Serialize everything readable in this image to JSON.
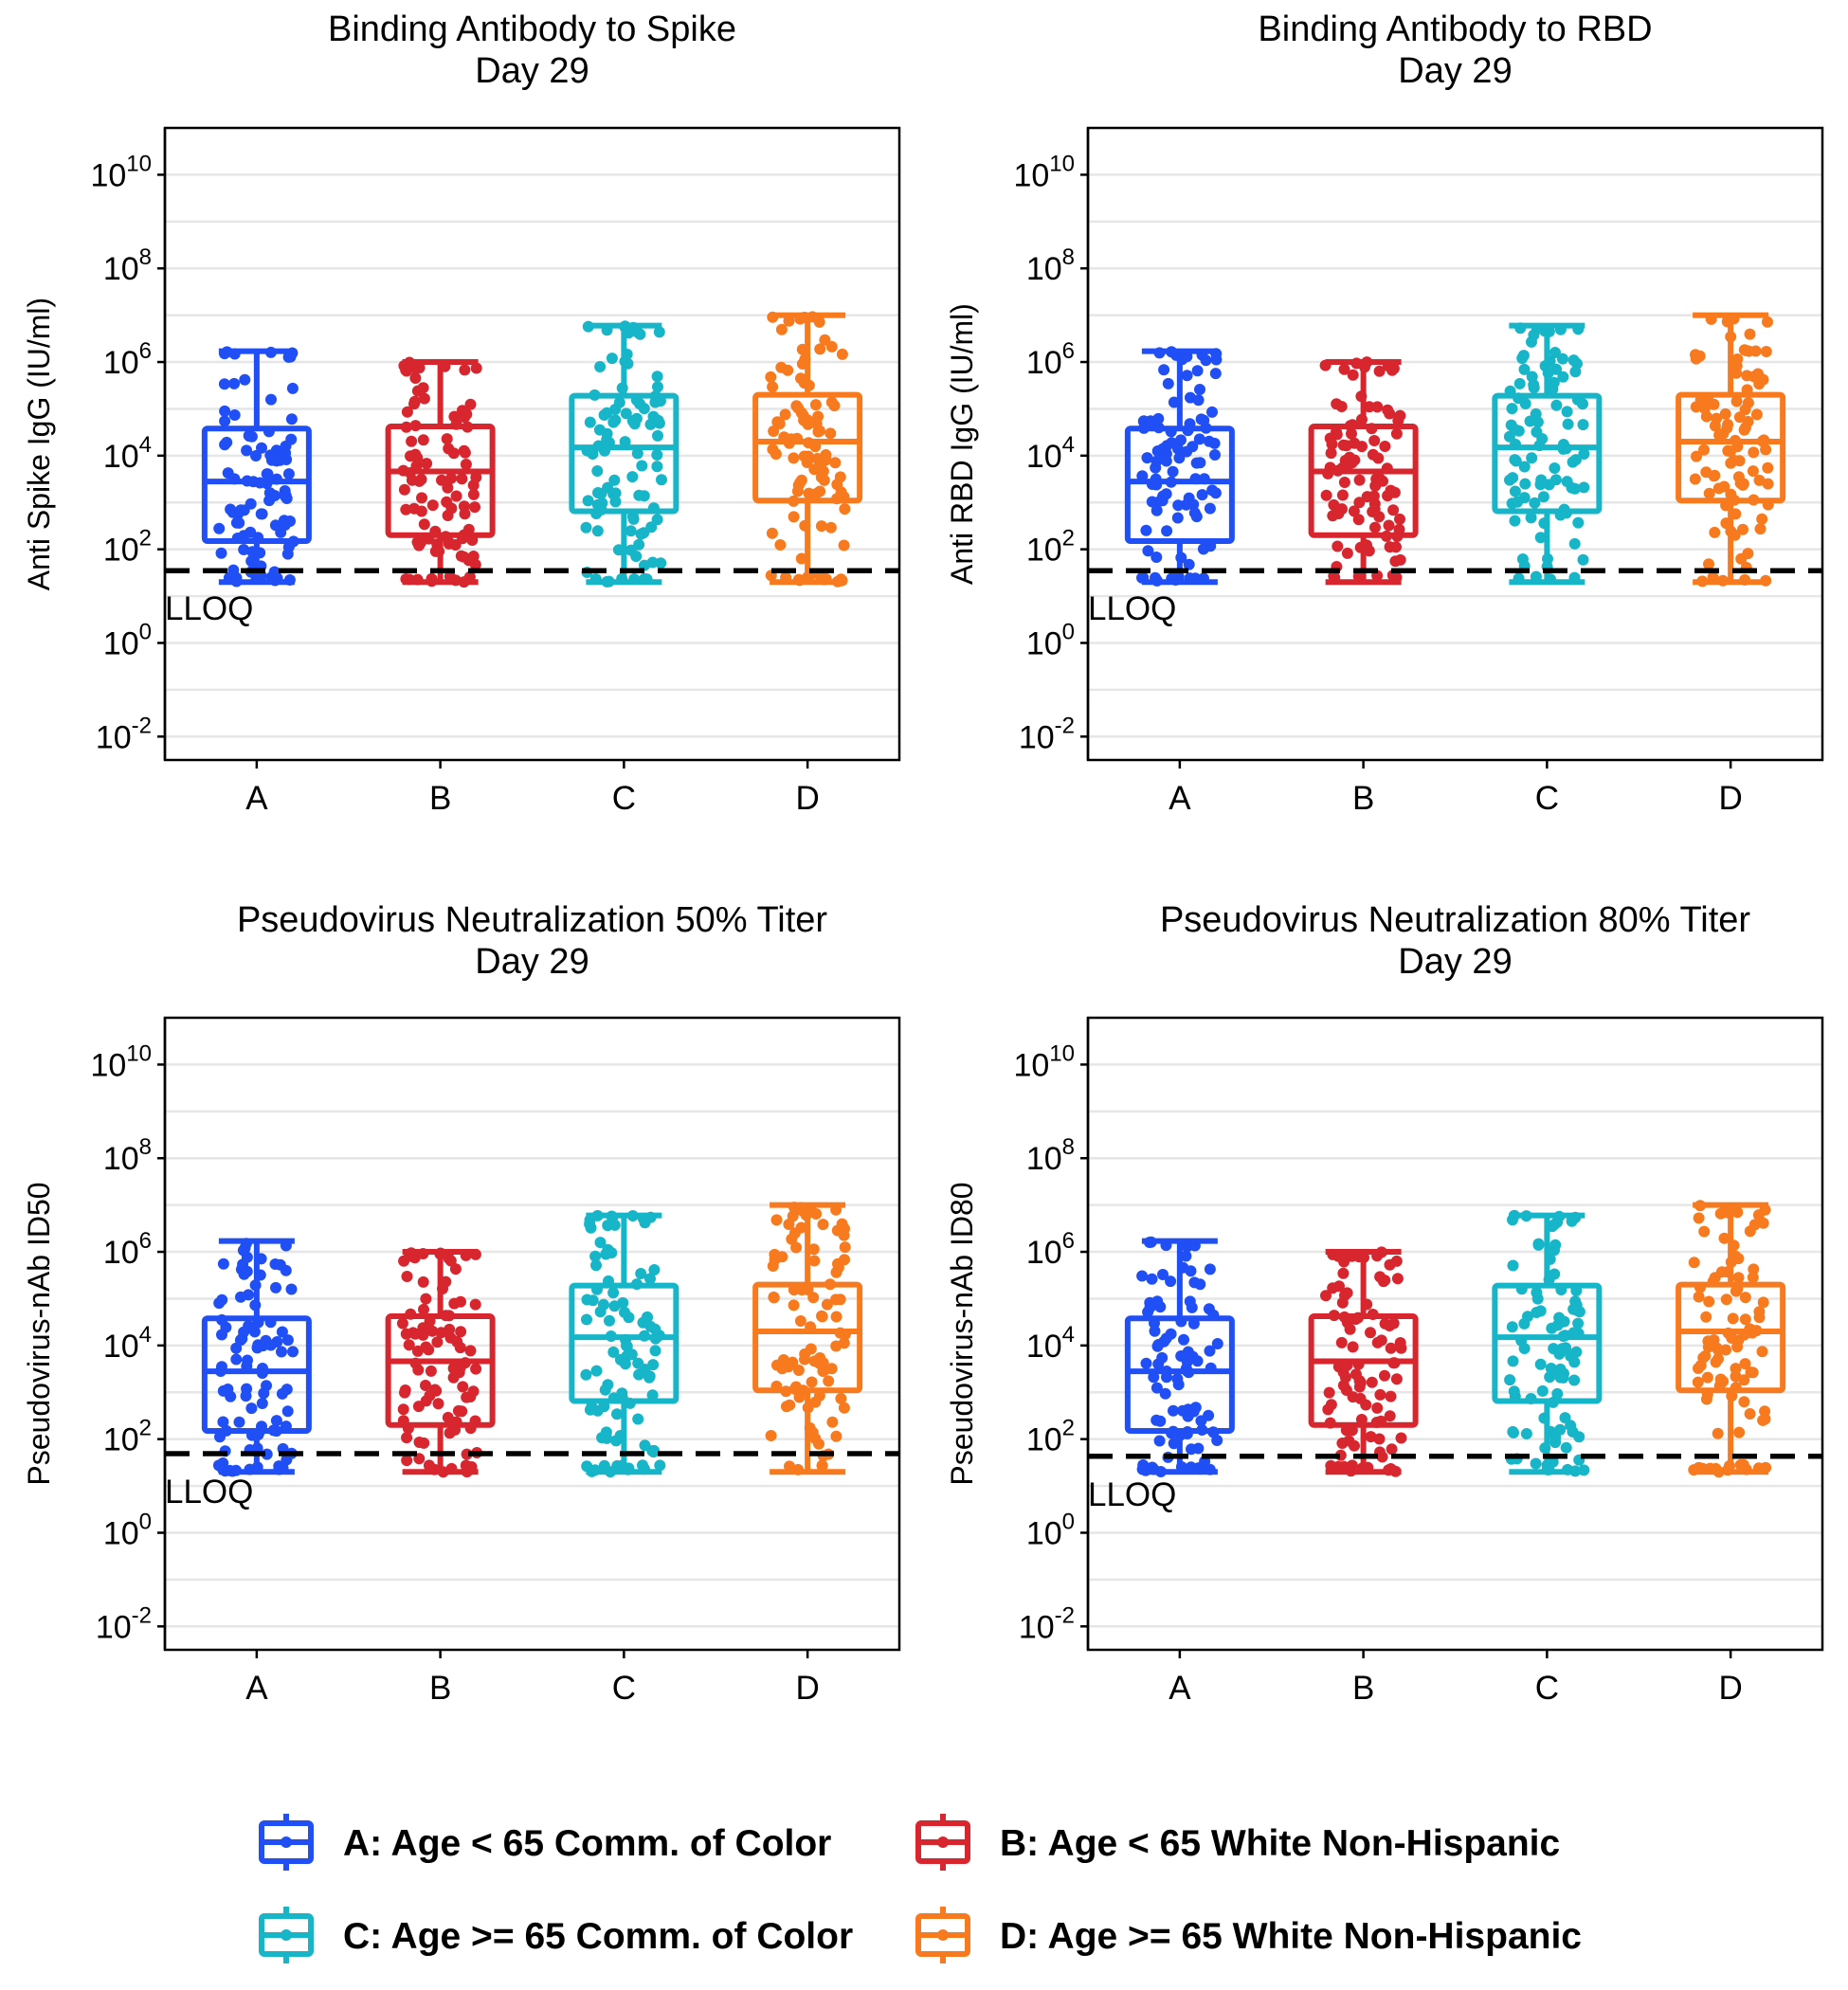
{
  "colors": {
    "A": "#1f4ff5",
    "B": "#d8262f",
    "C": "#17b5c8",
    "D": "#f77a1f"
  },
  "panel_titles": [
    {
      "line1": "Binding Antibody to Spike",
      "line2": "Day 29"
    },
    {
      "line1": "Binding Antibody to RBD",
      "line2": "Day 29"
    },
    {
      "line1": "Pseudovirus Neutralization 50% Titer",
      "line2": "Day 29"
    },
    {
      "line1": "Pseudovirus Neutralization 80% Titer",
      "line2": "Day 29"
    }
  ],
  "lloq_label": "LLOQ",
  "legend": [
    {
      "key": "A",
      "label": "A: Age < 65 Comm. of Color"
    },
    {
      "key": "B",
      "label": "B: Age < 65 White Non-Hispanic"
    },
    {
      "key": "C",
      "label": "C: Age >= 65 Comm. of Color"
    },
    {
      "key": "D",
      "label": "D: Age >= 65 White Non-Hispanic"
    }
  ],
  "chart_data": [
    {
      "type": "box",
      "title": "Binding Antibody to Spike\nDay 29",
      "ylabel": "Anti Spike IgG (IU/ml)",
      "yscale": "log10",
      "ylim_log10": [
        -2.5,
        11
      ],
      "yticks_log10": [
        -2,
        0,
        2,
        4,
        6,
        8,
        10
      ],
      "categories": [
        "A",
        "B",
        "C",
        "D"
      ],
      "lloq": 35,
      "boxes": [
        {
          "category": "A",
          "whisker_low": 20,
          "q1": 150,
          "median": 2800,
          "q3": 38000,
          "whisker_high": 1700000
        },
        {
          "category": "B",
          "whisker_low": 20,
          "q1": 200,
          "median": 4600,
          "q3": 42000,
          "whisker_high": 1000000
        },
        {
          "category": "C",
          "whisker_low": 20,
          "q1": 650,
          "median": 15000,
          "q3": 190000,
          "whisker_high": 6000000
        },
        {
          "category": "D",
          "whisker_low": 20,
          "q1": 1100,
          "median": 20000,
          "q3": 200000,
          "whisker_high": 10000000
        }
      ]
    },
    {
      "type": "box",
      "title": "Binding Antibody to RBD\nDay 29",
      "ylabel": "Anti RBD IgG (IU/ml)",
      "yscale": "log10",
      "ylim_log10": [
        -2.5,
        11
      ],
      "yticks_log10": [
        -2,
        0,
        2,
        4,
        6,
        8,
        10
      ],
      "categories": [
        "A",
        "B",
        "C",
        "D"
      ],
      "lloq": 35,
      "boxes": [
        {
          "category": "A",
          "whisker_low": 20,
          "q1": 150,
          "median": 2800,
          "q3": 38000,
          "whisker_high": 1700000
        },
        {
          "category": "B",
          "whisker_low": 20,
          "q1": 200,
          "median": 4600,
          "q3": 42000,
          "whisker_high": 1000000
        },
        {
          "category": "C",
          "whisker_low": 20,
          "q1": 650,
          "median": 15000,
          "q3": 190000,
          "whisker_high": 6000000
        },
        {
          "category": "D",
          "whisker_low": 20,
          "q1": 1100,
          "median": 20000,
          "q3": 200000,
          "whisker_high": 10000000
        }
      ]
    },
    {
      "type": "box",
      "title": "Pseudovirus Neutralization 50% Titer\nDay 29",
      "ylabel": "Pseudovirus-nAb ID50",
      "yscale": "log10",
      "ylim_log10": [
        -2.5,
        11
      ],
      "yticks_log10": [
        -2,
        0,
        2,
        4,
        6,
        8,
        10
      ],
      "categories": [
        "A",
        "B",
        "C",
        "D"
      ],
      "lloq": 49,
      "boxes": [
        {
          "category": "A",
          "whisker_low": 20,
          "q1": 150,
          "median": 2800,
          "q3": 38000,
          "whisker_high": 1700000
        },
        {
          "category": "B",
          "whisker_low": 20,
          "q1": 200,
          "median": 4600,
          "q3": 42000,
          "whisker_high": 1000000
        },
        {
          "category": "C",
          "whisker_low": 20,
          "q1": 650,
          "median": 15000,
          "q3": 190000,
          "whisker_high": 6000000
        },
        {
          "category": "D",
          "whisker_low": 20,
          "q1": 1100,
          "median": 20000,
          "q3": 200000,
          "whisker_high": 10000000
        }
      ]
    },
    {
      "type": "box",
      "title": "Pseudovirus Neutralization 80% Titer\nDay 29",
      "ylabel": "Pseudovirus-nAb ID80",
      "yscale": "log10",
      "ylim_log10": [
        -2.5,
        11
      ],
      "yticks_log10": [
        -2,
        0,
        2,
        4,
        6,
        8,
        10
      ],
      "categories": [
        "A",
        "B",
        "C",
        "D"
      ],
      "lloq": 43,
      "boxes": [
        {
          "category": "A",
          "whisker_low": 20,
          "q1": 150,
          "median": 2800,
          "q3": 38000,
          "whisker_high": 1700000
        },
        {
          "category": "B",
          "whisker_low": 20,
          "q1": 200,
          "median": 4600,
          "q3": 42000,
          "whisker_high": 1000000
        },
        {
          "category": "C",
          "whisker_low": 20,
          "q1": 650,
          "median": 15000,
          "q3": 190000,
          "whisker_high": 6000000
        },
        {
          "category": "D",
          "whisker_low": 20,
          "q1": 1100,
          "median": 20000,
          "q3": 200000,
          "whisker_high": 10000000
        }
      ]
    }
  ]
}
